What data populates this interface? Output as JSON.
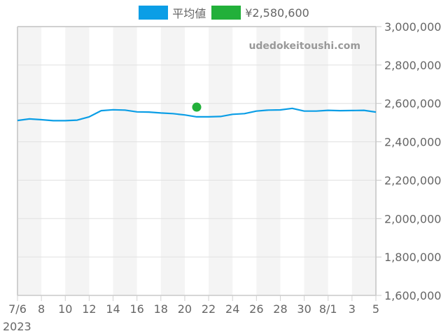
{
  "legend": {
    "items": [
      {
        "label": "平均値",
        "color": "#0b9ee6"
      },
      {
        "label": "¥2,580,600",
        "color": "#22b03a"
      }
    ]
  },
  "watermark": "udedokeitoushi.com",
  "chart_data": {
    "type": "line",
    "title": "",
    "xlabel": "",
    "ylabel": "",
    "ylim": [
      1600000,
      3000000
    ],
    "y_ticks": [
      "3,000,000",
      "2,800,000",
      "2,600,000",
      "2,400,000",
      "2,200,000",
      "2,000,000",
      "1,800,000",
      "1,600,000"
    ],
    "y_tick_values": [
      3000000,
      2800000,
      2600000,
      2400000,
      2200000,
      2000000,
      1800000,
      1600000
    ],
    "y_axis_position": "right",
    "x_tick_labels": [
      "7/6",
      "8",
      "10",
      "12",
      "14",
      "16",
      "18",
      "20",
      "22",
      "24",
      "26",
      "28",
      "30",
      "8/1",
      "3",
      "5"
    ],
    "x_year_label": "2023",
    "grid": true,
    "alternating_band_columns": true,
    "legend_position": "top",
    "x": [
      "7/6",
      "7/7",
      "7/8",
      "7/9",
      "7/10",
      "7/11",
      "7/12",
      "7/13",
      "7/14",
      "7/15",
      "7/16",
      "7/17",
      "7/18",
      "7/19",
      "7/20",
      "7/21",
      "7/22",
      "7/23",
      "7/24",
      "7/25",
      "7/26",
      "7/27",
      "7/28",
      "7/29",
      "7/30",
      "7/31",
      "8/1",
      "8/2",
      "8/3",
      "8/4",
      "8/5"
    ],
    "series": [
      {
        "name": "平均値",
        "color": "#0b9ee6",
        "type": "line",
        "values": [
          2511000,
          2519000,
          2515000,
          2510000,
          2510000,
          2513000,
          2530000,
          2562000,
          2567000,
          2565000,
          2556000,
          2555000,
          2550000,
          2547000,
          2540000,
          2530000,
          2530000,
          2532000,
          2543000,
          2547000,
          2560000,
          2565000,
          2566000,
          2574000,
          2560000,
          2560000,
          2564000,
          2562000,
          2563000,
          2564000,
          2555000
        ]
      },
      {
        "name": "¥2,580,600",
        "color": "#22b03a",
        "type": "scatter",
        "points": [
          {
            "x": "7/21",
            "y": 2580600
          }
        ]
      }
    ]
  }
}
